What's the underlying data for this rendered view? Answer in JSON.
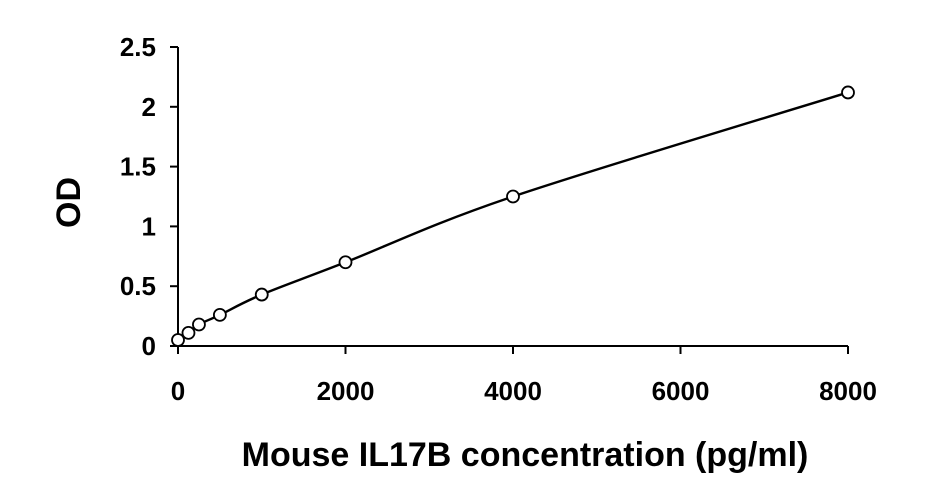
{
  "chart_data": {
    "type": "scatter",
    "xlabel": "Mouse IL17B concentration (pg/ml)",
    "ylabel": "OD",
    "xlim": [
      0,
      8000
    ],
    "ylim": [
      0,
      2.5
    ],
    "x_ticks": [
      "0",
      "2000",
      "4000",
      "6000",
      "8000"
    ],
    "y_ticks": [
      "0",
      "0.5",
      "1",
      "1.5",
      "2",
      "2.5"
    ],
    "grid": false,
    "legend": "none",
    "series": [
      {
        "x": [
          0,
          125,
          250,
          500,
          1000,
          2000,
          4000,
          8000
        ],
        "y": [
          0.05,
          0.11,
          0.18,
          0.26,
          0.43,
          0.7,
          1.25,
          2.12
        ],
        "marker": "open-circle",
        "trendline": "smooth-curve"
      }
    ]
  }
}
